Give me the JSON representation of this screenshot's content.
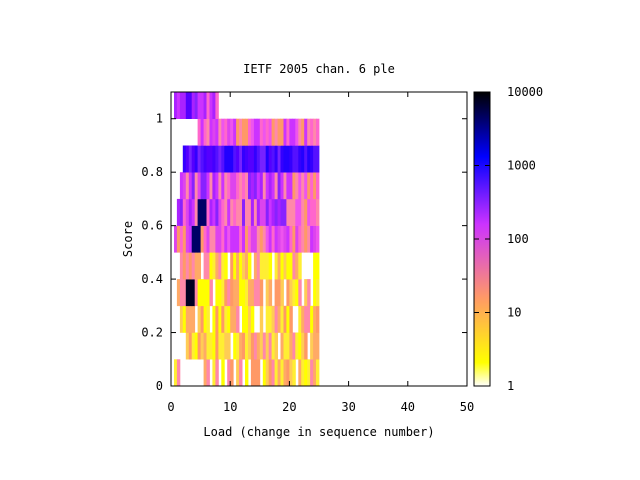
{
  "chart_data": {
    "type": "heatmap",
    "title": "IETF 2005 chan. 6 ple",
    "xlabel": "Load (change in sequence number)",
    "ylabel": "Score",
    "xlim": [
      0,
      50
    ],
    "ylim": [
      0,
      1.1
    ],
    "x_ticks": [
      "0",
      "10",
      "20",
      "30",
      "40",
      "50"
    ],
    "x_tick_values": [
      0,
      10,
      20,
      30,
      40,
      50
    ],
    "y_ticks": [
      "0",
      "0.2",
      "0.4",
      "0.6",
      "0.8",
      "1"
    ],
    "y_tick_values": [
      0,
      0.2,
      0.4,
      0.6,
      0.8,
      1
    ],
    "colorbar": {
      "scale": "log",
      "range": [
        1,
        10000
      ],
      "ticks": [
        "1",
        "10",
        "100",
        "1000",
        "10000"
      ],
      "tick_values": [
        1,
        10,
        100,
        1000,
        10000
      ],
      "colors": [
        "#ffffff",
        "#ffff00",
        "#ff9966",
        "#cc33ff",
        "#0000ff",
        "#000000"
      ]
    },
    "grid": false,
    "legend": "none",
    "score_rows": [
      {
        "score": 0.05,
        "cell_start": 1,
        "cell_end": 49,
        "profile": "low",
        "gap": [
          3,
          10
        ]
      },
      {
        "score": 0.15,
        "cell_start": 5,
        "cell_end": 49,
        "profile": "low"
      },
      {
        "score": 0.25,
        "cell_start": 3,
        "cell_end": 49,
        "profile": "low"
      },
      {
        "score": 0.35,
        "cell_start": 2,
        "cell_end": 49,
        "profile": "low",
        "peak_cell": 3
      },
      {
        "score": 0.45,
        "cell_start": 3,
        "cell_end": 49,
        "profile": "low"
      },
      {
        "score": 0.55,
        "cell_start": 1,
        "cell_end": 49,
        "profile": "mid",
        "peak_cell": 4
      },
      {
        "score": 0.65,
        "cell_start": 2,
        "cell_end": 49,
        "profile": "high",
        "peak_cell": 5
      },
      {
        "score": 0.75,
        "cell_start": 3,
        "cell_end": 49,
        "profile": "high"
      },
      {
        "score": 0.85,
        "cell_start": 4,
        "cell_end": 49,
        "profile": "peak"
      },
      {
        "score": 0.95,
        "cell_start": 9,
        "cell_end": 49,
        "profile": "mid"
      },
      {
        "score": 1.05,
        "cell_start": 1,
        "cell_end": 15,
        "profile": "top"
      }
    ]
  }
}
